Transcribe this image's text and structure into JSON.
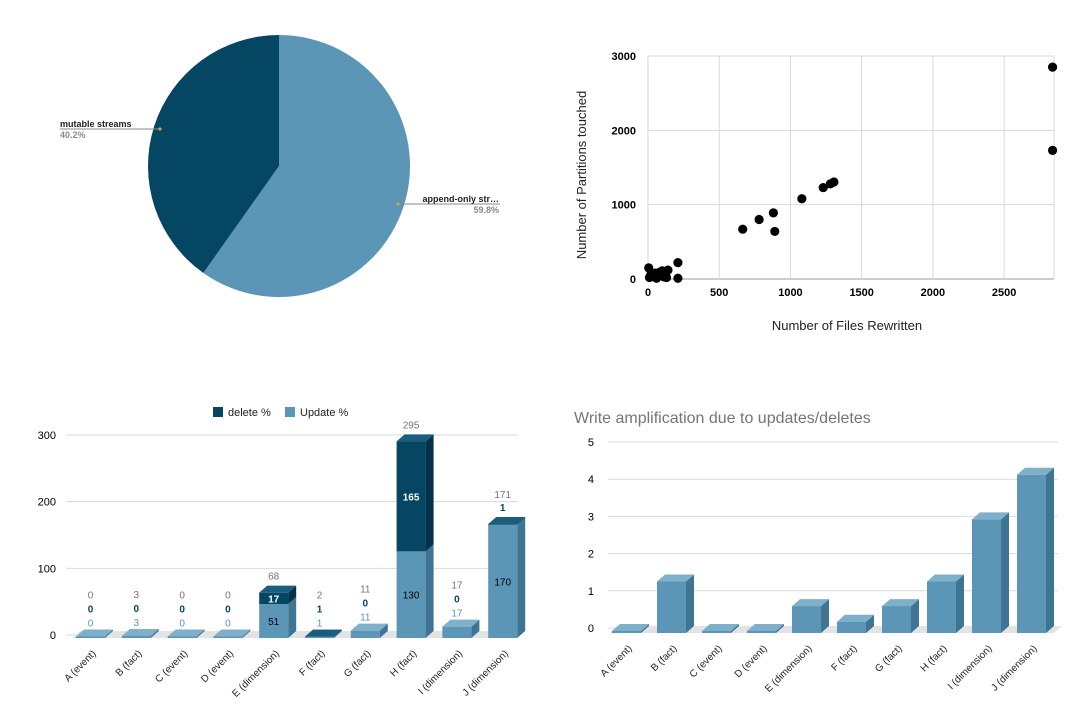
{
  "colors": {
    "dark": "#054663",
    "light": "#5b96b6",
    "dark_side": "#03324a",
    "light_side": "#3f7592",
    "light_top": "#7fb0cb",
    "dark_top": "#1a5d7d",
    "grid": "#d9d9d9",
    "axis_text": "#000000",
    "total_label": "#757575",
    "floor": "#e3e3e3"
  },
  "chart_data": [
    {
      "type": "pie",
      "slices": [
        {
          "label": "mutable streams",
          "value": 40.2,
          "pct_label": "40.2%",
          "color": "#054663"
        },
        {
          "label": "append-only str…",
          "value": 59.8,
          "pct_label": "59.8%",
          "color": "#5b96b6"
        }
      ]
    },
    {
      "type": "scatter",
      "xlabel": "Number of Files Rewritten",
      "ylabel": "Number of Partitions touched",
      "xlim": [
        0,
        2850
      ],
      "ylim": [
        0,
        3000
      ],
      "xticks": [
        "0",
        "500",
        "1000",
        "1500",
        "2000",
        "2500"
      ],
      "yticks": [
        "0",
        "1000",
        "2000",
        "3000"
      ],
      "grid": true,
      "points": [
        [
          5,
          150
        ],
        [
          10,
          20
        ],
        [
          20,
          60
        ],
        [
          40,
          30
        ],
        [
          50,
          80
        ],
        [
          60,
          10
        ],
        [
          70,
          40
        ],
        [
          80,
          90
        ],
        [
          90,
          50
        ],
        [
          100,
          110
        ],
        [
          110,
          30
        ],
        [
          120,
          70
        ],
        [
          130,
          20
        ],
        [
          140,
          120
        ],
        [
          210,
          220
        ],
        [
          210,
          10
        ],
        [
          665,
          670
        ],
        [
          780,
          800
        ],
        [
          880,
          890
        ],
        [
          890,
          640
        ],
        [
          1080,
          1080
        ],
        [
          1230,
          1230
        ],
        [
          1280,
          1280
        ],
        [
          1305,
          1305
        ],
        [
          2840,
          2850
        ],
        [
          2840,
          1730
        ]
      ]
    },
    {
      "type": "bar",
      "stacked": true,
      "categories": [
        "A (event)",
        "B (fact)",
        "C (event)",
        "D (event)",
        "E (dimension)",
        "F (fact)",
        "G (fact)",
        "H (fact)",
        "I (dimension)",
        "J (dimension)"
      ],
      "series": [
        {
          "name": "Update %",
          "values": [
            0,
            3,
            0,
            0,
            51,
            1,
            11,
            130,
            17,
            170
          ],
          "color": "#5b96b6"
        },
        {
          "name": "delete %",
          "values": [
            0,
            0,
            0,
            0,
            17,
            1,
            0,
            165,
            0,
            1
          ],
          "color": "#054663"
        }
      ],
      "totals": [
        0,
        3,
        0,
        0,
        68,
        2,
        11,
        295,
        17,
        171
      ],
      "ylim": [
        0,
        300
      ],
      "yticks": [
        "0",
        "100",
        "200",
        "300"
      ],
      "legend": "top",
      "grid": true
    },
    {
      "type": "bar",
      "title": "Write amplification due to updates/deletes",
      "categories": [
        "A (event)",
        "B (fact)",
        "C (event)",
        "D (event)",
        "E (dimension)",
        "F (fact)",
        "G (fact)",
        "H (fact)",
        "I (dimension)",
        "J (dimension)"
      ],
      "values": [
        0,
        1.33,
        0,
        0,
        0.67,
        0.25,
        0.67,
        1.33,
        3.0,
        4.2
      ],
      "ylim": [
        0,
        5
      ],
      "yticks": [
        "0",
        "1",
        "2",
        "3",
        "4",
        "5"
      ],
      "grid": true
    }
  ]
}
